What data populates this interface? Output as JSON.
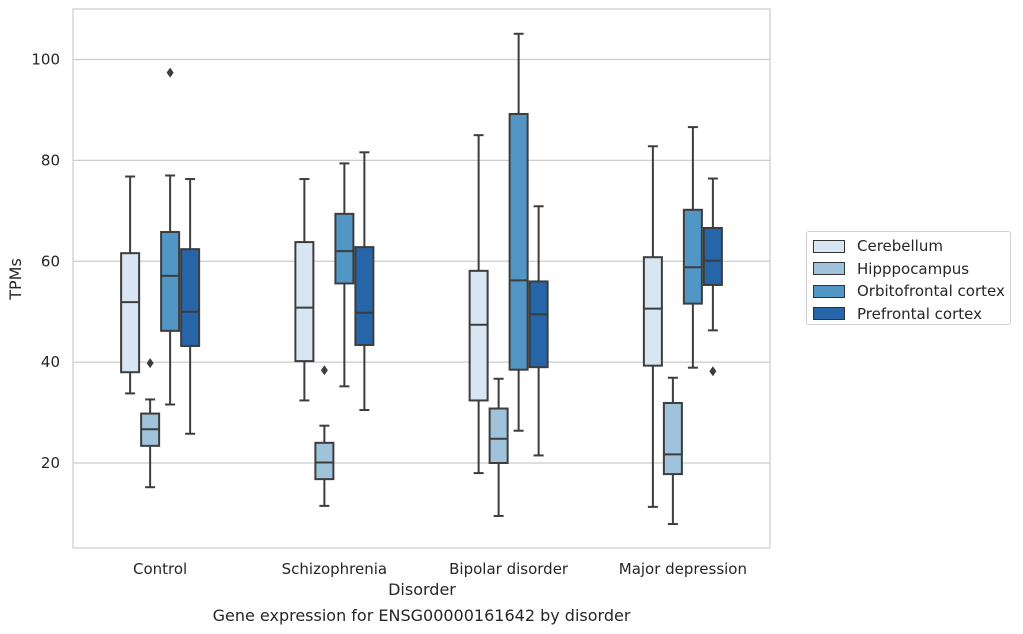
{
  "caption": "Gene expression for ENSG00000161642 by disorder",
  "chart_data": {
    "type": "boxplot",
    "title": "",
    "xlabel": "Disorder",
    "ylabel": "TPMs",
    "ylim": [
      3,
      110
    ],
    "yticks": [
      20,
      40,
      60,
      80,
      100
    ],
    "grid": "horizontal",
    "legend_position": "right",
    "categories": [
      "Control",
      "Schizophrenia",
      "Bipolar disorder",
      "Major depression"
    ],
    "series": [
      {
        "name": "Cerebellum",
        "color": "#d8e6f3",
        "boxes": [
          {
            "whisker_low": 33.8,
            "q1": 38.0,
            "median": 51.9,
            "q3": 61.6,
            "whisker_high": 76.8,
            "outliers": []
          },
          {
            "whisker_low": 32.4,
            "q1": 40.2,
            "median": 50.8,
            "q3": 63.8,
            "whisker_high": 76.3,
            "outliers": []
          },
          {
            "whisker_low": 18.0,
            "q1": 32.4,
            "median": 47.4,
            "q3": 58.1,
            "whisker_high": 85.0,
            "outliers": []
          },
          {
            "whisker_low": 11.3,
            "q1": 39.3,
            "median": 50.6,
            "q3": 60.8,
            "whisker_high": 82.8,
            "outliers": []
          }
        ]
      },
      {
        "name": "Hipppocampus",
        "color": "#9ec3db",
        "boxes": [
          {
            "whisker_low": 15.2,
            "q1": 23.4,
            "median": 26.7,
            "q3": 29.8,
            "whisker_high": 32.6,
            "outliers": [
              39.8
            ]
          },
          {
            "whisker_low": 11.5,
            "q1": 16.8,
            "median": 20.1,
            "q3": 24.0,
            "whisker_high": 27.4,
            "outliers": [
              38.4
            ]
          },
          {
            "whisker_low": 9.5,
            "q1": 20.0,
            "median": 24.8,
            "q3": 30.8,
            "whisker_high": 36.7,
            "outliers": []
          },
          {
            "whisker_low": 7.9,
            "q1": 17.8,
            "median": 21.7,
            "q3": 31.9,
            "whisker_high": 36.9,
            "outliers": []
          }
        ]
      },
      {
        "name": "Orbitofrontal cortex",
        "color": "#5296c6",
        "boxes": [
          {
            "whisker_low": 31.6,
            "q1": 46.2,
            "median": 57.1,
            "q3": 65.8,
            "whisker_high": 77.0,
            "outliers": [
              97.4
            ]
          },
          {
            "whisker_low": 35.2,
            "q1": 55.6,
            "median": 62.0,
            "q3": 69.4,
            "whisker_high": 79.4,
            "outliers": []
          },
          {
            "whisker_low": 26.4,
            "q1": 38.5,
            "median": 56.2,
            "q3": 89.2,
            "whisker_high": 105.1,
            "outliers": []
          },
          {
            "whisker_low": 38.9,
            "q1": 51.6,
            "median": 58.8,
            "q3": 70.2,
            "whisker_high": 86.6,
            "outliers": []
          }
        ]
      },
      {
        "name": "Prefrontal cortex",
        "color": "#2565a8",
        "boxes": [
          {
            "whisker_low": 25.8,
            "q1": 43.2,
            "median": 50.0,
            "q3": 62.4,
            "whisker_high": 76.3,
            "outliers": []
          },
          {
            "whisker_low": 30.5,
            "q1": 43.4,
            "median": 49.8,
            "q3": 62.8,
            "whisker_high": 81.6,
            "outliers": []
          },
          {
            "whisker_low": 21.5,
            "q1": 39.0,
            "median": 49.5,
            "q3": 56.0,
            "whisker_high": 70.9,
            "outliers": []
          },
          {
            "whisker_low": 46.3,
            "q1": 55.3,
            "median": 60.1,
            "q3": 66.6,
            "whisker_high": 76.4,
            "outliers": [
              38.2
            ]
          }
        ]
      }
    ]
  }
}
